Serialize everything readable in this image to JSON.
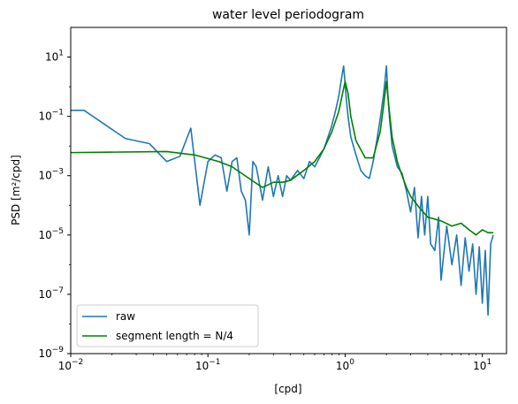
{
  "chart_data": {
    "type": "line",
    "title": "water level periodogram",
    "xlabel": "[cpd]",
    "ylabel": "PSD [m²/cpd]",
    "xscale": "log",
    "yscale": "log",
    "xlim": [
      0.01,
      15
    ],
    "ylim": [
      1e-09,
      100
    ],
    "grid": false,
    "legend_position": "lower-left",
    "x_ticks": [
      {
        "value": 0.01,
        "base": "10",
        "exp": "−2"
      },
      {
        "value": 0.1,
        "base": "10",
        "exp": "−1"
      },
      {
        "value": 1,
        "base": "10",
        "exp": "0"
      },
      {
        "value": 10,
        "base": "10",
        "exp": "1"
      }
    ],
    "y_ticks": [
      {
        "value": 1e-09,
        "base": "10",
        "exp": "−9"
      },
      {
        "value": 1e-07,
        "base": "10",
        "exp": "−7"
      },
      {
        "value": 1e-05,
        "base": "10",
        "exp": "−5"
      },
      {
        "value": 0.001,
        "base": "10",
        "exp": "−3"
      },
      {
        "value": 0.1,
        "base": "10",
        "exp": "−1"
      },
      {
        "value": 10,
        "base": "10",
        "exp": "1"
      }
    ],
    "series": [
      {
        "name": "raw",
        "color": "#1f77b4",
        "x": [
          0.01,
          0.0125,
          0.025,
          0.0375,
          0.05,
          0.0625,
          0.075,
          0.0875,
          0.1,
          0.1125,
          0.125,
          0.1375,
          0.15,
          0.1625,
          0.175,
          0.1875,
          0.2,
          0.2125,
          0.225,
          0.25,
          0.275,
          0.3,
          0.325,
          0.35,
          0.375,
          0.4,
          0.45,
          0.5,
          0.55,
          0.6,
          0.65,
          0.7,
          0.75,
          0.8,
          0.85,
          0.9,
          0.95,
          0.975,
          1.0,
          1.025,
          1.05,
          1.1,
          1.2,
          1.3,
          1.4,
          1.5,
          1.6,
          1.7,
          1.8,
          1.9,
          1.95,
          2.0,
          2.05,
          2.1,
          2.2,
          2.4,
          2.6,
          2.8,
          3.0,
          3.2,
          3.4,
          3.6,
          3.8,
          4.0,
          4.2,
          4.5,
          4.8,
          5.0,
          5.5,
          6.0,
          6.5,
          7.0,
          7.5,
          8.0,
          8.5,
          9.0,
          9.5,
          10.0,
          10.5,
          11.0,
          11.5,
          12.0
        ],
        "y": [
          0.16,
          0.16,
          0.018,
          0.012,
          0.003,
          0.0045,
          0.04,
          0.0001,
          0.003,
          0.005,
          0.004,
          0.0003,
          0.003,
          0.004,
          0.0003,
          0.00015,
          1e-05,
          0.003,
          0.002,
          0.00015,
          0.002,
          0.0002,
          0.001,
          0.0002,
          0.001,
          0.0007,
          0.0015,
          0.0008,
          0.003,
          0.002,
          0.004,
          0.008,
          0.02,
          0.05,
          0.15,
          0.5,
          2.5,
          5,
          1.2,
          0.3,
          0.1,
          0.02,
          0.005,
          0.0015,
          0.001,
          0.0008,
          0.003,
          0.015,
          0.08,
          0.5,
          1.5,
          5,
          0.5,
          0.1,
          0.01,
          0.002,
          0.0012,
          0.0003,
          6e-05,
          0.0004,
          8e-06,
          0.0002,
          1e-05,
          0.0002,
          5e-06,
          3e-06,
          4e-05,
          3e-07,
          2e-05,
          1e-06,
          1e-05,
          2e-07,
          8e-06,
          6e-07,
          5e-06,
          1e-07,
          4e-06,
          5e-08,
          3e-06,
          2e-08,
          5e-06,
          1e-05
        ]
      },
      {
        "name": "segment length = N/4",
        "color": "#008000",
        "x": [
          0.01,
          0.05,
          0.08,
          0.12,
          0.15,
          0.2,
          0.25,
          0.3,
          0.35,
          0.4,
          0.5,
          0.6,
          0.7,
          0.8,
          0.9,
          0.95,
          1.0,
          1.05,
          1.1,
          1.2,
          1.4,
          1.6,
          1.8,
          1.9,
          2.0,
          2.1,
          2.2,
          2.4,
          2.6,
          2.8,
          3.0,
          3.5,
          4.0,
          5.0,
          6.0,
          7.0,
          8.0,
          9.0,
          10.0,
          11.0,
          12.0
        ],
        "y": [
          0.006,
          0.0065,
          0.005,
          0.003,
          0.002,
          0.0008,
          0.0004,
          0.0006,
          0.0006,
          0.0007,
          0.0015,
          0.003,
          0.008,
          0.03,
          0.15,
          0.5,
          1.5,
          0.6,
          0.1,
          0.015,
          0.004,
          0.004,
          0.03,
          0.2,
          1.5,
          0.15,
          0.02,
          0.003,
          0.001,
          0.0004,
          0.0002,
          8e-05,
          4e-05,
          3e-05,
          2e-05,
          2.5e-05,
          1.5e-05,
          1e-05,
          1.5e-05,
          1.2e-05,
          1.2e-05
        ]
      }
    ]
  }
}
